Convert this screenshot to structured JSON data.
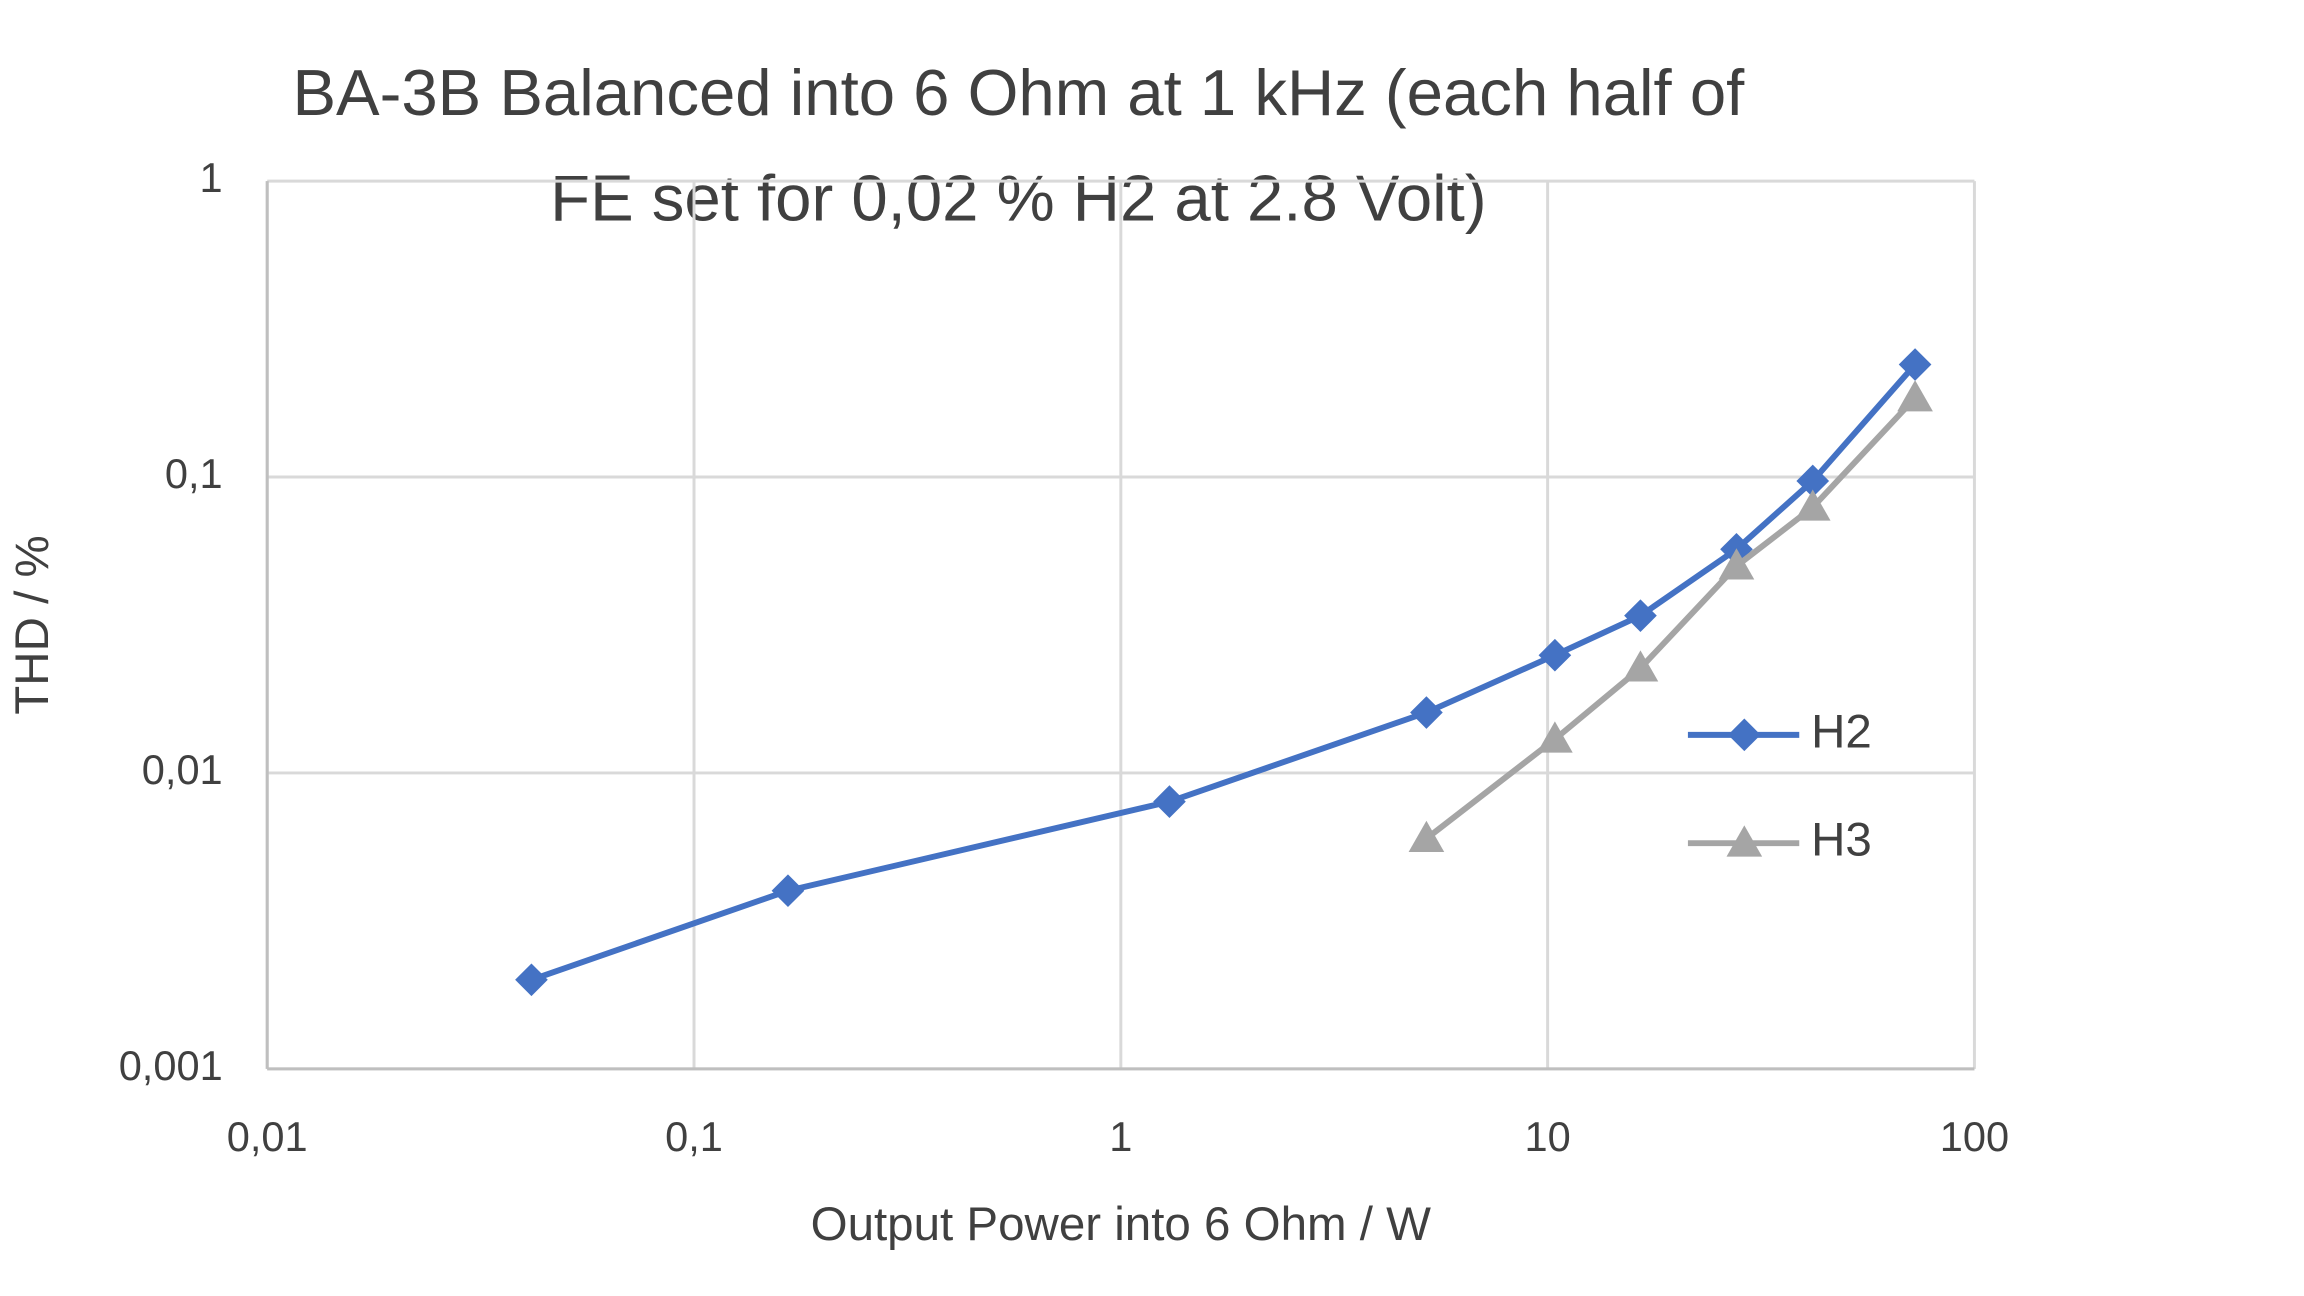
{
  "chart_data": {
    "type": "line",
    "title": [
      "BA-3B Balanced into 6 Ohm at 1 kHz (each half of",
      "FE set for 0,02 % H2 at 2.8 Volt)"
    ],
    "xlabel": "Output Power into 6 Ohm  / W",
    "ylabel": "THD / %",
    "x": [
      0.0416,
      0.166,
      1.3,
      5.2,
      10.4,
      16.5,
      27.7,
      41.8,
      72.6
    ],
    "series": [
      {
        "name": "H2",
        "color": "#4472c4",
        "marker": "diamond",
        "values": [
          0.002,
          0.004,
          0.008,
          0.016,
          0.025,
          0.034,
          0.057,
          0.097,
          0.24
        ]
      },
      {
        "name": "H3",
        "color": "#a5a5a5",
        "marker": "triangle",
        "values": [
          null,
          null,
          null,
          0.006,
          0.013,
          0.0226,
          0.05,
          0.079,
          0.185
        ]
      }
    ],
    "xscale": "log",
    "yscale": "log",
    "xlim": [
      0.01,
      100
    ],
    "xticks": [
      {
        "value": 0.01,
        "label": "0,01"
      },
      {
        "value": 0.1,
        "label": "0,1"
      },
      1,
      10,
      100
    ],
    "ylim": [
      0.001,
      1
    ],
    "yticks": [
      {
        "value": 0.001,
        "label": "0,001"
      },
      {
        "value": 0.01,
        "label": "0,01"
      },
      {
        "value": 0.1,
        "label": "0,1"
      },
      1
    ],
    "grid": true,
    "legend": "right"
  }
}
